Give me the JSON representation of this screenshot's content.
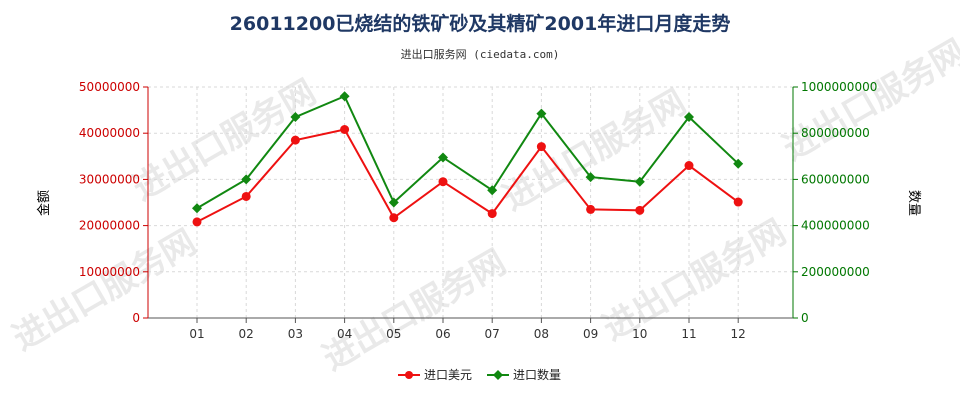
{
  "chart_data": {
    "type": "line",
    "title": "26011200已烧结的铁矿砂及其精矿2001年进口月度走势",
    "subtitle": "进出口服务网 (ciedata.com)",
    "watermark": "进出口服务网",
    "categories": [
      "01",
      "02",
      "03",
      "04",
      "05",
      "06",
      "07",
      "08",
      "09",
      "10",
      "11",
      "12"
    ],
    "ylabel_left": "金额",
    "ylabel_right": "数量",
    "ylim_left": [
      0,
      50000000
    ],
    "ylim_right": [
      0,
      1000000000
    ],
    "yticks_left": [
      "0",
      "10000000",
      "20000000",
      "30000000",
      "40000000",
      "50000000"
    ],
    "yticks_right": [
      "0",
      "200000000",
      "400000000",
      "600000000",
      "800000000",
      "1000000000"
    ],
    "grid": true,
    "legend_position": "bottom",
    "colors": {
      "left_axis": "#cc0000",
      "right_axis": "#007700",
      "series_value": "#ee1111",
      "series_quantity": "#118811"
    },
    "series": [
      {
        "name": "进口美元",
        "axis": "left",
        "values": [
          20800000,
          26300000,
          38500000,
          40800000,
          21700000,
          29500000,
          22600000,
          37100000,
          23500000,
          23300000,
          33000000,
          25100000
        ]
      },
      {
        "name": "进口数量",
        "axis": "right",
        "values": [
          475000000,
          600000000,
          870000000,
          960000000,
          500000000,
          695000000,
          553000000,
          885000000,
          610000000,
          590000000,
          870000000,
          668000000
        ]
      }
    ]
  }
}
